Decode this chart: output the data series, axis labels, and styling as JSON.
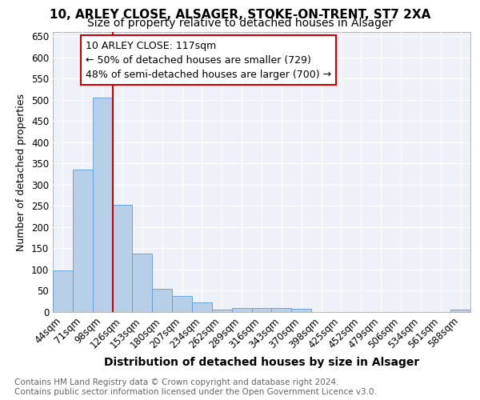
{
  "title": "10, ARLEY CLOSE, ALSAGER, STOKE-ON-TRENT, ST7 2XA",
  "subtitle": "Size of property relative to detached houses in Alsager",
  "xlabel": "Distribution of detached houses by size in Alsager",
  "ylabel": "Number of detached properties",
  "categories": [
    "44sqm",
    "71sqm",
    "98sqm",
    "126sqm",
    "153sqm",
    "180sqm",
    "207sqm",
    "234sqm",
    "262sqm",
    "289sqm",
    "316sqm",
    "343sqm",
    "370sqm",
    "398sqm",
    "425sqm",
    "452sqm",
    "479sqm",
    "506sqm",
    "534sqm",
    "561sqm",
    "588sqm"
  ],
  "values": [
    98,
    335,
    505,
    253,
    138,
    55,
    38,
    22,
    5,
    10,
    10,
    10,
    7,
    0,
    0,
    0,
    0,
    0,
    0,
    0,
    5
  ],
  "bar_color": "#b8cfe8",
  "bar_edge_color": "#5b9bd5",
  "vline_color": "#cc0000",
  "vline_x": 2.5,
  "annotation_text": "10 ARLEY CLOSE: 117sqm\n← 50% of detached houses are smaller (729)\n48% of semi-detached houses are larger (700) →",
  "annotation_box_color": "#ffffff",
  "annotation_box_edge_color": "#cc0000",
  "ylim": [
    0,
    660
  ],
  "yticks": [
    0,
    50,
    100,
    150,
    200,
    250,
    300,
    350,
    400,
    450,
    500,
    550,
    600,
    650
  ],
  "background_color": "#eef2f8",
  "footer_text": "Contains HM Land Registry data © Crown copyright and database right 2024.\nContains public sector information licensed under the Open Government Licence v3.0.",
  "title_fontsize": 11,
  "subtitle_fontsize": 10,
  "xlabel_fontsize": 10,
  "ylabel_fontsize": 9,
  "tick_fontsize": 8.5,
  "annotation_fontsize": 9,
  "footer_fontsize": 7.5
}
